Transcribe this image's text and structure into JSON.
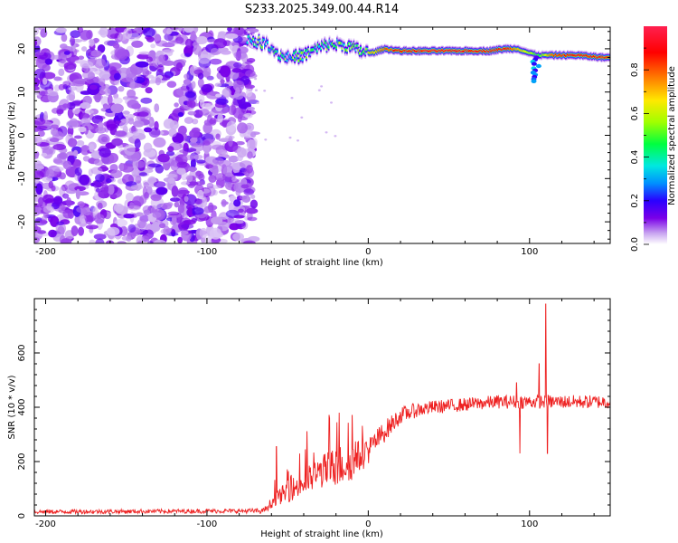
{
  "title": "S233.2025.349.00.44.R14",
  "chart_data": [
    {
      "type": "heatmap",
      "title": "S233.2025.349.00.44.R14",
      "xlabel": "Height of straight line (km)",
      "ylabel": "Frequency (Hz)",
      "xlim": [
        -207,
        150
      ],
      "ylim": [
        -25,
        25
      ],
      "xticks": [
        -200,
        -100,
        0,
        100
      ],
      "yticks": [
        -20,
        -10,
        0,
        10,
        20
      ],
      "colorbar": {
        "label": "Normalized spectral amplitude",
        "range": [
          0,
          1
        ],
        "ticks": [
          "0.0",
          "0.2",
          "0.4",
          "0.6",
          "0.8"
        ],
        "colors": [
          "#ffffff",
          "#c9a6f0",
          "#7a00e8",
          "#2a00ff",
          "#0090ff",
          "#00e8e0",
          "#00ff40",
          "#a0ff00",
          "#ffe800",
          "#ff8000",
          "#ff0000",
          "#ff2050"
        ]
      },
      "noise_region_x": [
        -207,
        -73
      ],
      "ridge": [
        {
          "x": -75,
          "f": 22.5,
          "a": 0.35
        },
        {
          "x": -68,
          "f": 21.5,
          "a": 0.55
        },
        {
          "x": -62,
          "f": 21.0,
          "a": 0.4
        },
        {
          "x": -55,
          "f": 18.5,
          "a": 0.5
        },
        {
          "x": -48,
          "f": 18.0,
          "a": 0.45
        },
        {
          "x": -40,
          "f": 18.5,
          "a": 0.5
        },
        {
          "x": -32,
          "f": 20.0,
          "a": 0.45
        },
        {
          "x": -25,
          "f": 21.0,
          "a": 0.5
        },
        {
          "x": -18,
          "f": 21.0,
          "a": 0.55
        },
        {
          "x": -12,
          "f": 20.5,
          "a": 0.5
        },
        {
          "x": -5,
          "f": 19.5,
          "a": 0.6
        },
        {
          "x": 2,
          "f": 19.0,
          "a": 0.7
        },
        {
          "x": 10,
          "f": 20.0,
          "a": 0.8
        },
        {
          "x": 20,
          "f": 19.5,
          "a": 0.9
        },
        {
          "x": 35,
          "f": 19.5,
          "a": 0.95
        },
        {
          "x": 55,
          "f": 19.5,
          "a": 0.95
        },
        {
          "x": 75,
          "f": 19.5,
          "a": 0.9
        },
        {
          "x": 85,
          "f": 20.0,
          "a": 0.9
        },
        {
          "x": 93,
          "f": 20.0,
          "a": 0.7
        },
        {
          "x": 100,
          "f": 19.0,
          "a": 0.6
        },
        {
          "x": 106,
          "f": 18.5,
          "a": 0.5
        },
        {
          "x": 115,
          "f": 18.5,
          "a": 0.85
        },
        {
          "x": 130,
          "f": 18.5,
          "a": 0.9
        },
        {
          "x": 145,
          "f": 18.0,
          "a": 0.85
        }
      ]
    },
    {
      "type": "line",
      "xlabel": "Height of straight line (km)",
      "ylabel": "SNR (10 * v/v)",
      "xlim": [
        -207,
        150
      ],
      "ylim": [
        0,
        800
      ],
      "xticks": [
        -200,
        -100,
        0,
        100
      ],
      "yticks": [
        0,
        200,
        400,
        600
      ],
      "color": "#ee2020",
      "profile_x": [
        -207,
        -80,
        -65,
        -58,
        -50,
        -40,
        -30,
        -20,
        -10,
        0,
        10,
        20,
        30,
        40,
        60,
        80,
        100,
        120,
        150
      ],
      "profile_y": [
        15,
        18,
        18,
        60,
        90,
        120,
        160,
        180,
        200,
        240,
        310,
        370,
        390,
        400,
        410,
        420,
        420,
        420,
        420
      ],
      "noise_x": [
        -207,
        -80,
        -65,
        -50,
        -30,
        -20,
        -10,
        0,
        10,
        20,
        40,
        80,
        100,
        150
      ],
      "noise_amp": [
        8,
        8,
        10,
        40,
        60,
        80,
        70,
        50,
        40,
        30,
        25,
        25,
        25,
        25
      ],
      "spikes": [
        {
          "x": -57,
          "y": 255
        },
        {
          "x": -38,
          "y": 310
        },
        {
          "x": -24,
          "y": 360
        },
        {
          "x": -18,
          "y": 380
        },
        {
          "x": -10,
          "y": 370
        },
        {
          "x": 92,
          "y": 490
        },
        {
          "x": 94,
          "y": 230
        },
        {
          "x": 106,
          "y": 560
        },
        {
          "x": 110,
          "y": 780
        },
        {
          "x": 111,
          "y": 230
        }
      ]
    }
  ]
}
